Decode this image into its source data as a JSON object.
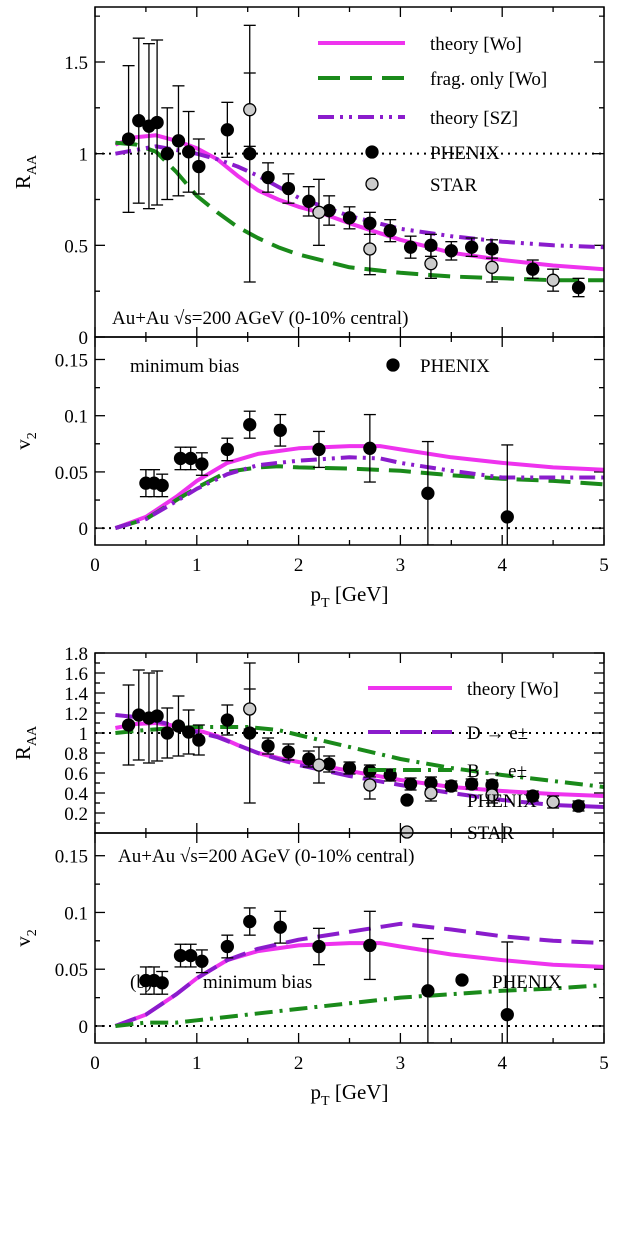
{
  "colors": {
    "magenta": "#ee33ee",
    "green": "#1a8a1a",
    "purple": "#8a1ccc",
    "phenix_marker": "#000000",
    "star_marker": "#cccccc"
  },
  "chart_data": [
    {
      "type": "line",
      "panel": "top-RAA",
      "title": "",
      "ylabel": "R",
      "ylabel_sub": "AA",
      "xlim": [
        0,
        5
      ],
      "ylim": [
        0,
        1.8
      ],
      "yticks": [
        0,
        0.5,
        1,
        1.5
      ],
      "ytick_labels": [
        "0",
        "0.5",
        "1",
        "1.5"
      ],
      "legend_position": "top-right",
      "annotation": "Au+Au √s=200 AGeV (0-10% central)",
      "reference_line": 1,
      "series": [
        {
          "name": "theory [Wo]",
          "style": "solid",
          "color": "#ee33ee",
          "x": [
            0.2,
            0.4,
            0.6,
            0.8,
            1.0,
            1.2,
            1.4,
            1.6,
            1.8,
            2.0,
            2.2,
            2.5,
            3.0,
            3.5,
            4.0,
            4.5,
            5.0
          ],
          "y": [
            1.05,
            1.09,
            1.1,
            1.07,
            1.03,
            0.97,
            0.88,
            0.8,
            0.75,
            0.71,
            0.68,
            0.62,
            0.53,
            0.46,
            0.42,
            0.39,
            0.37
          ]
        },
        {
          "name": "frag. only [Wo]",
          "style": "dashed",
          "color": "#1a8a1a",
          "x": [
            0.2,
            0.4,
            0.6,
            0.8,
            1.0,
            1.2,
            1.4,
            1.6,
            1.8,
            2.0,
            2.5,
            3.0,
            3.5,
            4.0,
            4.5,
            5.0
          ],
          "y": [
            1.06,
            1.05,
            1.01,
            0.9,
            0.77,
            0.68,
            0.6,
            0.54,
            0.49,
            0.45,
            0.38,
            0.35,
            0.33,
            0.32,
            0.31,
            0.31
          ]
        },
        {
          "name": "theory [SZ]",
          "style": "dash-dot-dot",
          "color": "#8a1ccc",
          "x": [
            0.2,
            0.4,
            0.6,
            0.8,
            1.0,
            1.2,
            1.4,
            1.6,
            1.8,
            2.0,
            2.5,
            3.0,
            3.5,
            4.0,
            4.5,
            5.0
          ],
          "y": [
            1.0,
            1.02,
            1.04,
            1.02,
            1.0,
            0.97,
            0.93,
            0.88,
            0.82,
            0.76,
            0.66,
            0.59,
            0.55,
            0.52,
            0.5,
            0.49
          ]
        },
        {
          "name": "PHENIX",
          "style": "markers",
          "color": "#000000",
          "marker": "filled",
          "x": [
            0.33,
            0.43,
            0.53,
            0.61,
            0.71,
            0.82,
            0.92,
            1.02,
            1.3,
            1.52,
            1.7,
            1.9,
            2.1,
            2.3,
            2.5,
            2.7,
            2.9,
            3.1,
            3.3,
            3.5,
            3.7,
            3.9,
            4.3,
            4.75
          ],
          "y": [
            1.08,
            1.18,
            1.15,
            1.17,
            1.0,
            1.07,
            1.01,
            0.93,
            1.13,
            1.0,
            0.87,
            0.81,
            0.74,
            0.69,
            0.65,
            0.62,
            0.58,
            0.49,
            0.5,
            0.47,
            0.49,
            0.48,
            0.37,
            0.27
          ],
          "err": [
            0.4,
            0.45,
            0.45,
            0.45,
            0.25,
            0.3,
            0.22,
            0.15,
            0.15,
            0.7,
            0.08,
            0.08,
            0.08,
            0.08,
            0.06,
            0.06,
            0.06,
            0.06,
            0.06,
            0.05,
            0.05,
            0.05,
            0.05,
            0.05
          ]
        },
        {
          "name": "STAR",
          "style": "markers",
          "color": "#cccccc",
          "marker": "open-gray",
          "x": [
            1.52,
            2.2,
            2.7,
            3.3,
            3.9,
            4.5
          ],
          "y": [
            1.24,
            0.68,
            0.48,
            0.4,
            0.38,
            0.31
          ],
          "err": [
            0.2,
            0.18,
            0.14,
            0.08,
            0.08,
            0.06
          ]
        }
      ]
    },
    {
      "type": "line",
      "panel": "top-v2",
      "xlabel": "p",
      "xlabel_sub": "T",
      "xlabel_unit": " [GeV]",
      "ylabel": "v",
      "ylabel_sub": "2",
      "xlim": [
        0,
        5
      ],
      "ylim": [
        -0.015,
        0.17
      ],
      "xticks": [
        0,
        1,
        2,
        3,
        4,
        5
      ],
      "xtick_labels": [
        "0",
        "1",
        "2",
        "3",
        "4",
        "5"
      ],
      "yticks": [
        0,
        0.05,
        0.1,
        0.15
      ],
      "ytick_labels": [
        "0",
        "0.05",
        "0.1",
        "0.15"
      ],
      "annotation": "minimum bias",
      "reference_line": 0,
      "series": [
        {
          "name": "theory [Wo]",
          "style": "solid",
          "color": "#ee33ee",
          "x": [
            0.2,
            0.5,
            0.8,
            1.0,
            1.3,
            1.6,
            2.0,
            2.5,
            2.8,
            3.0,
            3.5,
            4.0,
            4.5,
            5.0
          ],
          "y": [
            0.0,
            0.01,
            0.028,
            0.042,
            0.058,
            0.066,
            0.071,
            0.073,
            0.073,
            0.07,
            0.063,
            0.058,
            0.054,
            0.052
          ]
        },
        {
          "name": "frag. only [Wo]",
          "style": "dashed",
          "color": "#1a8a1a",
          "x": [
            0.2,
            0.5,
            0.8,
            1.0,
            1.3,
            1.6,
            1.8,
            2.0,
            2.5,
            3.0,
            3.5,
            4.0,
            4.5,
            5.0
          ],
          "y": [
            0.0,
            0.008,
            0.025,
            0.036,
            0.05,
            0.054,
            0.055,
            0.054,
            0.053,
            0.051,
            0.047,
            0.044,
            0.042,
            0.039
          ]
        },
        {
          "name": "theory [SZ]",
          "style": "dash-dot-dot",
          "color": "#8a1ccc",
          "x": [
            0.2,
            0.5,
            0.8,
            1.0,
            1.3,
            1.6,
            1.8,
            2.0,
            2.5,
            2.8,
            3.0,
            3.5,
            4.0,
            4.5,
            5.0
          ],
          "y": [
            0.0,
            0.008,
            0.024,
            0.035,
            0.048,
            0.056,
            0.058,
            0.06,
            0.063,
            0.062,
            0.058,
            0.051,
            0.045,
            0.045,
            0.045
          ]
        },
        {
          "name": "PHENIX",
          "style": "markers",
          "color": "#000000",
          "x": [
            0.5,
            0.58,
            0.66,
            0.84,
            0.94,
            1.05,
            1.3,
            1.52,
            1.82,
            2.2,
            2.7,
            3.27,
            4.05
          ],
          "y": [
            0.04,
            0.04,
            0.038,
            0.062,
            0.062,
            0.057,
            0.07,
            0.092,
            0.087,
            0.07,
            0.071,
            0.031,
            0.01
          ],
          "err": [
            0.012,
            0.012,
            0.01,
            0.01,
            0.01,
            0.01,
            0.01,
            0.012,
            0.014,
            0.016,
            0.03,
            0.046,
            0.064
          ]
        }
      ]
    },
    {
      "type": "line",
      "panel": "bottom-RAA",
      "ylabel": "R",
      "ylabel_sub": "AA",
      "xlim": [
        0,
        5
      ],
      "ylim": [
        0,
        1.8
      ],
      "yticks": [
        0.2,
        0.4,
        0.6,
        0.8,
        1,
        1.2,
        1.4,
        1.6,
        1.8
      ],
      "ytick_labels": [
        "0.2",
        "0.4",
        "0.6",
        "0.8",
        "1",
        "1.2",
        "1.4",
        "1.6",
        "1.8"
      ],
      "legend_position": "top-right",
      "annotation": "Au+Au √s=200 AGeV (0-10% central)",
      "reference_line": 1,
      "series": [
        {
          "name": "theory [Wo]",
          "style": "solid",
          "color": "#ee33ee",
          "x": [
            0.2,
            0.4,
            0.6,
            0.8,
            1.0,
            1.2,
            1.4,
            1.6,
            1.8,
            2.0,
            2.2,
            2.5,
            3.0,
            3.5,
            4.0,
            4.5,
            5.0
          ],
          "y": [
            1.05,
            1.09,
            1.1,
            1.07,
            1.03,
            0.97,
            0.88,
            0.8,
            0.75,
            0.71,
            0.68,
            0.62,
            0.53,
            0.46,
            0.42,
            0.39,
            0.37
          ]
        },
        {
          "name": "D → e±",
          "style": "dashed",
          "color": "#8a1ccc",
          "x": [
            0.2,
            0.4,
            0.6,
            0.8,
            1.0,
            1.2,
            1.4,
            1.6,
            1.8,
            2.0,
            2.5,
            3.0,
            3.5,
            4.0,
            4.5,
            5.0
          ],
          "y": [
            1.18,
            1.16,
            1.12,
            1.07,
            1.01,
            0.96,
            0.88,
            0.8,
            0.74,
            0.68,
            0.57,
            0.48,
            0.4,
            0.33,
            0.28,
            0.26
          ]
        },
        {
          "name": "B → e±",
          "style": "dash-dot",
          "color": "#1a8a1a",
          "x": [
            0.2,
            0.5,
            0.8,
            1.0,
            1.2,
            1.5,
            1.8,
            2.0,
            2.5,
            3.0,
            3.5,
            4.0,
            4.5,
            5.0
          ],
          "y": [
            1.0,
            1.03,
            1.05,
            1.06,
            1.06,
            1.06,
            1.03,
            0.98,
            0.86,
            0.74,
            0.65,
            0.58,
            0.52,
            0.46
          ]
        },
        {
          "name": "PHENIX",
          "style": "markers",
          "color": "#000000",
          "x": [
            0.33,
            0.43,
            0.53,
            0.61,
            0.71,
            0.82,
            0.92,
            1.02,
            1.3,
            1.52,
            1.7,
            1.9,
            2.1,
            2.3,
            2.5,
            2.7,
            2.9,
            3.1,
            3.3,
            3.5,
            3.7,
            3.9,
            4.3,
            4.75
          ],
          "y": [
            1.08,
            1.18,
            1.15,
            1.17,
            1.0,
            1.07,
            1.01,
            0.93,
            1.13,
            1.0,
            0.87,
            0.81,
            0.74,
            0.69,
            0.65,
            0.62,
            0.58,
            0.49,
            0.5,
            0.47,
            0.49,
            0.48,
            0.37,
            0.27
          ],
          "err": [
            0.4,
            0.45,
            0.45,
            0.45,
            0.25,
            0.3,
            0.22,
            0.15,
            0.15,
            0.7,
            0.08,
            0.08,
            0.08,
            0.08,
            0.06,
            0.06,
            0.06,
            0.06,
            0.06,
            0.05,
            0.05,
            0.05,
            0.05,
            0.05
          ]
        },
        {
          "name": "STAR",
          "style": "markers",
          "color": "#cccccc",
          "x": [
            1.52,
            2.2,
            2.7,
            3.3,
            3.9,
            4.5
          ],
          "y": [
            1.24,
            0.68,
            0.48,
            0.4,
            0.38,
            0.31
          ],
          "err": [
            0.2,
            0.18,
            0.14,
            0.08,
            0.08,
            0.06
          ]
        }
      ]
    },
    {
      "type": "line",
      "panel": "bottom-v2",
      "xlabel": "p",
      "xlabel_sub": "T",
      "xlabel_unit": " [GeV]",
      "ylabel": "v",
      "ylabel_sub": "2",
      "xlim": [
        0,
        5
      ],
      "ylim": [
        -0.015,
        0.17
      ],
      "xticks": [
        0,
        1,
        2,
        3,
        4,
        5
      ],
      "xtick_labels": [
        "0",
        "1",
        "2",
        "3",
        "4",
        "5"
      ],
      "yticks": [
        0,
        0.05,
        0.1,
        0.15
      ],
      "ytick_labels": [
        "0",
        "0.05",
        "0.1",
        "0.15"
      ],
      "annotation": "minimum bias",
      "panel_label": "(b)",
      "reference_line": 0,
      "series": [
        {
          "name": "theory [Wo]",
          "style": "solid",
          "color": "#ee33ee",
          "x": [
            0.2,
            0.5,
            0.8,
            1.0,
            1.3,
            1.6,
            2.0,
            2.5,
            2.8,
            3.0,
            3.5,
            4.0,
            4.5,
            5.0
          ],
          "y": [
            0.0,
            0.01,
            0.028,
            0.042,
            0.058,
            0.066,
            0.071,
            0.073,
            0.073,
            0.07,
            0.063,
            0.058,
            0.054,
            0.052
          ]
        },
        {
          "name": "D → e±",
          "style": "dashed",
          "color": "#8a1ccc",
          "x": [
            0.2,
            0.5,
            0.8,
            1.0,
            1.3,
            1.6,
            2.0,
            2.5,
            3.0,
            3.5,
            4.0,
            4.5,
            5.0
          ],
          "y": [
            0.0,
            0.01,
            0.028,
            0.042,
            0.058,
            0.068,
            0.076,
            0.083,
            0.09,
            0.085,
            0.079,
            0.075,
            0.073
          ]
        },
        {
          "name": "B → e±",
          "style": "dash-dot",
          "color": "#1a8a1a",
          "x": [
            0.2,
            0.5,
            0.8,
            1.0,
            1.5,
            2.0,
            2.5,
            3.0,
            3.5,
            4.0,
            4.5,
            5.0
          ],
          "y": [
            0.0,
            0.003,
            0.003,
            0.005,
            0.01,
            0.015,
            0.02,
            0.025,
            0.028,
            0.031,
            0.033,
            0.036
          ]
        },
        {
          "name": "PHENIX",
          "style": "markers",
          "color": "#000000",
          "x": [
            0.5,
            0.58,
            0.66,
            0.84,
            0.94,
            1.05,
            1.3,
            1.52,
            1.82,
            2.2,
            2.7,
            3.27,
            4.05
          ],
          "y": [
            0.04,
            0.04,
            0.038,
            0.062,
            0.062,
            0.057,
            0.07,
            0.092,
            0.087,
            0.07,
            0.071,
            0.031,
            0.01
          ],
          "err": [
            0.012,
            0.012,
            0.01,
            0.01,
            0.01,
            0.01,
            0.01,
            0.012,
            0.014,
            0.016,
            0.03,
            0.046,
            0.064
          ]
        }
      ]
    }
  ]
}
